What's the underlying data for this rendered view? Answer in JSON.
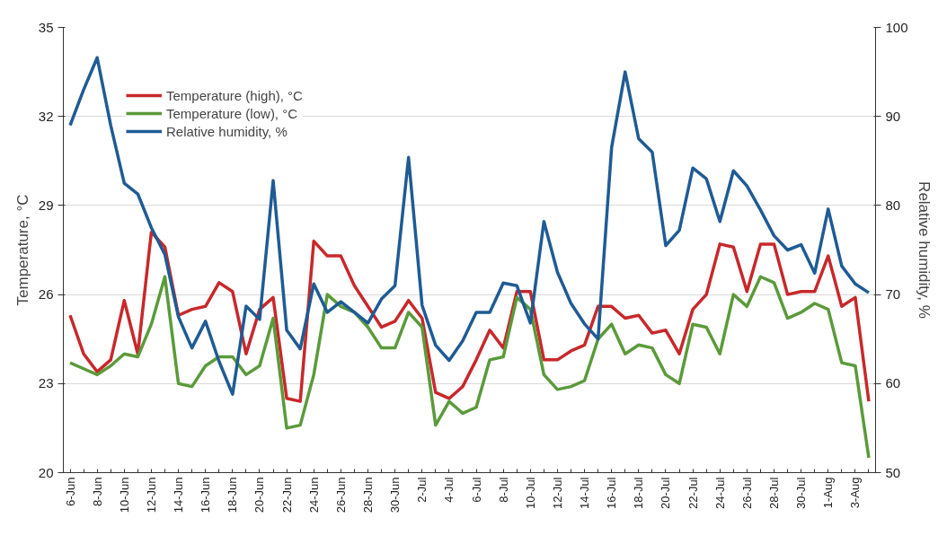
{
  "chart_data": {
    "type": "line",
    "categories": [
      "6-Jun",
      null,
      "8-Jun",
      null,
      "10-Jun",
      null,
      "12-Jun",
      null,
      "14-Jun",
      null,
      "16-Jun",
      null,
      "18-Jun",
      null,
      "20-Jun",
      null,
      "22-Jun",
      null,
      "24-Jun",
      null,
      "26-Jun",
      null,
      "28-Jun",
      null,
      "30-Jun",
      null,
      "2-Jul",
      null,
      "4-Jul",
      null,
      "6-Jul",
      null,
      "8-Jul",
      null,
      "10-Jul",
      null,
      "12-Jul",
      null,
      "14-Jul",
      null,
      "16-Jul",
      null,
      "18-Jul",
      null,
      "20-Jul",
      null,
      "22-Jul",
      null,
      "24-Jul",
      null,
      "26-Jul",
      null,
      "28-Jul",
      null,
      "30-Jul",
      null,
      "1-Aug",
      null,
      "3-Aug",
      null
    ],
    "ylabel": "Temperature, °C",
    "y2label": "Relative humidity, %",
    "ylim": [
      20,
      35
    ],
    "yticks": [
      20,
      23,
      26,
      29,
      32,
      35
    ],
    "y2lim": [
      50,
      100
    ],
    "y2ticks": [
      50,
      60,
      70,
      80,
      90,
      100
    ],
    "grid": "y",
    "legend": "top left",
    "line_style": "solid",
    "marker": "none",
    "series": [
      {
        "name": "Temperature (high), °C",
        "color": "#c8282b",
        "values": [
          25.3,
          24.0,
          23.4,
          23.8,
          25.8,
          24.0,
          28.1,
          27.6,
          25.3,
          25.5,
          25.6,
          26.4,
          26.1,
          24.0,
          25.5,
          25.9,
          22.5,
          22.4,
          27.8,
          27.3,
          27.3,
          26.3,
          25.6,
          24.9,
          25.1,
          25.8,
          25.2,
          22.7,
          22.5,
          22.9,
          23.8,
          24.8,
          24.2,
          26.1,
          26.1,
          23.8,
          23.8,
          24.1,
          24.3,
          25.6,
          25.6,
          25.2,
          25.3,
          24.7,
          24.8,
          24.0,
          25.5,
          26.0,
          27.7,
          27.6,
          26.1,
          27.7,
          27.7,
          26.0,
          26.1,
          26.1,
          27.3,
          25.6,
          25.9,
          22.4
        ]
      },
      {
        "name": "Temperature (low), °C",
        "color": "#5b9a3b",
        "values": [
          23.7,
          23.5,
          23.3,
          23.6,
          24.0,
          23.9,
          25.0,
          26.6,
          23.0,
          22.9,
          23.6,
          23.9,
          23.9,
          23.3,
          23.6,
          25.2,
          21.5,
          21.6,
          23.3,
          26.0,
          25.6,
          25.4,
          24.9,
          24.2,
          24.2,
          25.4,
          24.9,
          21.6,
          22.4,
          22.0,
          22.2,
          23.8,
          23.9,
          25.9,
          25.5,
          23.3,
          22.8,
          22.9,
          23.1,
          24.5,
          25.0,
          24.0,
          24.3,
          24.2,
          23.3,
          23.0,
          25.0,
          24.9,
          24.0,
          26.0,
          25.6,
          26.6,
          26.4,
          25.2,
          25.4,
          25.7,
          25.5,
          23.7,
          23.6,
          20.5
        ]
      },
      {
        "name": "Relative humidity, %",
        "color": "#1f5b95",
        "axis": "y2",
        "values": [
          89,
          93,
          96.6,
          89,
          82.5,
          81.3,
          77.5,
          74.5,
          67.5,
          64,
          67,
          62.5,
          58.8,
          68.7,
          67.2,
          82.8,
          66,
          63.9,
          71.2,
          68,
          69.2,
          68,
          66.8,
          69.5,
          71,
          85.4,
          68.8,
          64.3,
          62.6,
          64.8,
          68,
          68,
          71.3,
          71,
          66.8,
          78.2,
          72.5,
          69,
          66.7,
          65,
          86.5,
          95,
          87.5,
          86,
          75.5,
          77.2,
          84.2,
          83,
          78.2,
          83.9,
          82.2,
          79.5,
          76.6,
          75,
          75.6,
          72.4,
          79.6,
          73.2,
          71.2,
          70.2
        ]
      }
    ]
  }
}
